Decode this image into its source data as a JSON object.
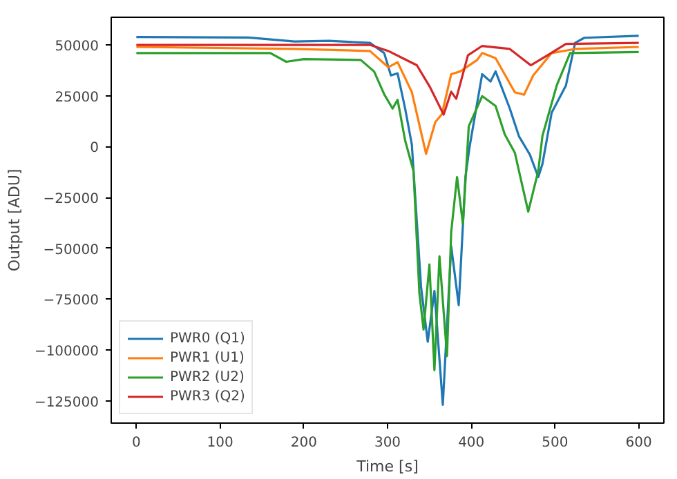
{
  "chart_data": {
    "type": "line",
    "xlabel": "Time [s]",
    "ylabel": "Output [ADU]",
    "xlim": [
      -30,
      630
    ],
    "ylim": [
      -136000,
      63600
    ],
    "xticks": [
      0,
      100,
      200,
      300,
      400,
      500,
      600
    ],
    "yticks": [
      {
        "value": -125000,
        "label": "−125000"
      },
      {
        "value": -100000,
        "label": "−100000"
      },
      {
        "value": -75000,
        "label": "−75000"
      },
      {
        "value": -50000,
        "label": "−50000"
      },
      {
        "value": -25000,
        "label": "−25000"
      },
      0,
      25000,
      50000
    ],
    "grid": false,
    "legend": "bottom left",
    "marker": "none",
    "line_style": "solid",
    "series": [
      {
        "name": "PWR0 (Q1)",
        "color": "#1f77b4",
        "x": [
          0,
          134,
          189,
          230,
          279,
          296,
          304,
          312,
          321,
          329,
          340,
          348,
          356,
          366,
          376,
          385,
          393,
          398,
          413,
          423,
          429,
          446,
          457,
          470,
          480,
          485,
          496,
          513,
          524,
          535,
          600
        ],
        "values": [
          53900,
          53600,
          51700,
          52000,
          51000,
          46000,
          35000,
          36000,
          18700,
          1000,
          -69000,
          -96000,
          -71000,
          -127000,
          -49000,
          -78000,
          -15000,
          0,
          35600,
          32000,
          37000,
          18700,
          5000,
          -4000,
          -15000,
          -8500,
          16700,
          30000,
          51000,
          53500,
          54500
        ]
      },
      {
        "name": "PWR1 (U1)",
        "color": "#ff7f0e",
        "x": [
          0,
          189,
          279,
          301,
          312,
          329,
          346,
          357,
          365,
          376,
          387,
          407,
          413,
          429,
          452,
          463,
          474,
          496,
          524,
          600
        ],
        "values": [
          49000,
          48000,
          47000,
          39000,
          41500,
          26800,
          -3600,
          12000,
          16000,
          35600,
          37000,
          42600,
          46000,
          43500,
          26700,
          25500,
          35000,
          46000,
          48000,
          49000
        ]
      },
      {
        "name": "PWR2 (U2)",
        "color": "#2ca02c",
        "x": [
          0,
          160,
          179,
          200,
          268,
          284,
          296,
          306,
          312,
          321,
          331,
          338,
          343,
          350,
          356,
          362,
          371,
          376,
          383,
          390,
          397,
          413,
          429,
          440,
          452,
          468,
          480,
          485,
          502,
          518,
          600
        ],
        "values": [
          46000,
          46000,
          41700,
          43000,
          42600,
          36900,
          25700,
          18700,
          23000,
          3000,
          -12000,
          -72000,
          -90000,
          -58000,
          -110000,
          -54000,
          -103000,
          -42000,
          -15000,
          -38000,
          10000,
          24800,
          20000,
          6000,
          -3000,
          -32000,
          -12000,
          5300,
          30000,
          46000,
          46500
        ]
      },
      {
        "name": "PWR3 (Q2)",
        "color": "#d62728",
        "x": [
          0,
          279,
          301,
          318,
          335,
          351,
          367,
          376,
          382,
          396,
          413,
          446,
          471,
          491,
          513,
          600
        ],
        "values": [
          50000,
          50000,
          47000,
          43500,
          40000,
          29000,
          15700,
          27000,
          23500,
          44900,
          49500,
          48000,
          40000,
          44900,
          50500,
          51000
        ]
      }
    ]
  }
}
